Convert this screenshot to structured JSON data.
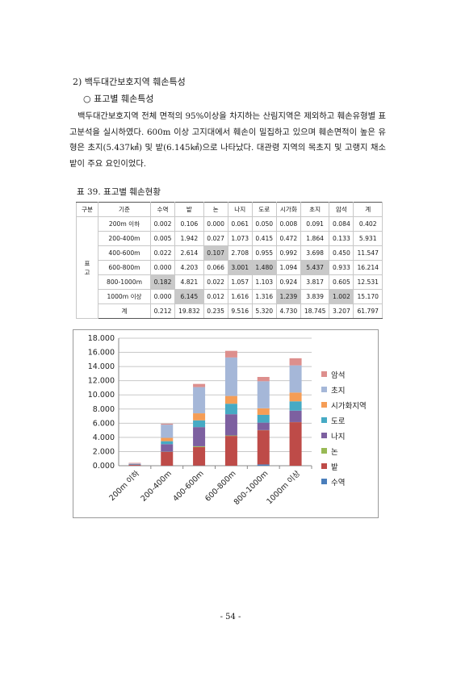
{
  "section": {
    "title": "2) 백두대간보호지역 훼손특성",
    "subtitle": "○ 표고별 훼손특성",
    "paragraph": "백두대간보호지역 전체 면적의 95%이상을 차지하는 산림지역은 제외하고 훼손유형별 표고분석을 실시하였다. 600m 이상 고지대에서 훼손이 밀집하고 있으며 훼손면적이 높은 유형은 초지(5.437㎢) 및 밭(6.145㎢)으로 나타났다. 대관령 지역의 목초지 및 고랭지 채소밭이 주요 요인이었다."
  },
  "table": {
    "caption": "표 39. 표고별 훼손현황",
    "headers": [
      "구분",
      "기준",
      "수역",
      "밭",
      "논",
      "나지",
      "도로",
      "시가화",
      "초지",
      "암석",
      "계"
    ],
    "side_label": "표고",
    "rows": [
      {
        "label": "200m 이하",
        "cells": [
          "0.002",
          "0.106",
          "0.000",
          "0.061",
          "0.050",
          "0.008",
          "0.091",
          "0.084",
          "0.402"
        ]
      },
      {
        "label": "200-400m",
        "cells": [
          "0.005",
          "1.942",
          "0.027",
          "1.073",
          "0.415",
          "0.472",
          "1.864",
          "0.133",
          "5.931"
        ]
      },
      {
        "label": "400-600m",
        "cells": [
          "0.022",
          "2.614",
          "0.107",
          "2.708",
          "0.955",
          "0.992",
          "3.698",
          "0.450",
          "11.547"
        ]
      },
      {
        "label": "600-800m",
        "cells": [
          "0.000",
          "4.203",
          "0.066",
          "3.001",
          "1.480",
          "1.094",
          "5.437",
          "0.933",
          "16.214"
        ]
      },
      {
        "label": "800-1000m",
        "cells": [
          "0.182",
          "4.821",
          "0.022",
          "1.057",
          "1.103",
          "0.924",
          "3.817",
          "0.605",
          "12.531"
        ]
      },
      {
        "label": "1000m 이상",
        "cells": [
          "0.000",
          "6.145",
          "0.012",
          "1.616",
          "1.316",
          "1.239",
          "3.839",
          "1.002",
          "15.170"
        ]
      }
    ],
    "total": {
      "label": "계",
      "cells": [
        "0.212",
        "19.832",
        "0.235",
        "9.516",
        "5.320",
        "4.730",
        "18.745",
        "3.207",
        "61.797"
      ]
    }
  },
  "chart_data": {
    "type": "bar",
    "stacked": true,
    "categories": [
      "200m 이하",
      "200-400m",
      "400-600m",
      "600-800m",
      "800-1000m",
      "1000m 이상"
    ],
    "ylim": [
      0,
      18
    ],
    "yticks": [
      "0.000",
      "2.000",
      "4.000",
      "6.000",
      "8.000",
      "10.000",
      "12.000",
      "14.000",
      "16.000",
      "18.000"
    ],
    "grid": true,
    "legend_position": "right",
    "series": [
      {
        "name": "수역",
        "color": "#4a7ebb",
        "values": [
          0.002,
          0.005,
          0.022,
          0.0,
          0.182,
          0.0
        ]
      },
      {
        "name": "밭",
        "color": "#be4b48",
        "values": [
          0.106,
          1.942,
          2.614,
          4.203,
          4.821,
          6.145
        ]
      },
      {
        "name": "논",
        "color": "#98b954",
        "values": [
          0.0,
          0.027,
          0.107,
          0.066,
          0.022,
          0.012
        ]
      },
      {
        "name": "나지",
        "color": "#7d60a0",
        "values": [
          0.061,
          1.073,
          2.708,
          3.001,
          1.057,
          1.616
        ]
      },
      {
        "name": "도로",
        "color": "#46aac4",
        "values": [
          0.05,
          0.415,
          0.955,
          1.48,
          1.103,
          1.316
        ]
      },
      {
        "name": "시가화지역",
        "color": "#f59d56",
        "values": [
          0.008,
          0.472,
          0.992,
          1.094,
          0.924,
          1.239
        ]
      },
      {
        "name": "초지",
        "color": "#a5b7d8",
        "values": [
          0.091,
          1.864,
          3.698,
          5.437,
          3.817,
          3.839
        ]
      },
      {
        "name": "암석",
        "color": "#dd8f8d",
        "values": [
          0.084,
          0.133,
          0.45,
          0.933,
          0.605,
          1.002
        ]
      }
    ]
  },
  "page_number": "- 54 -"
}
